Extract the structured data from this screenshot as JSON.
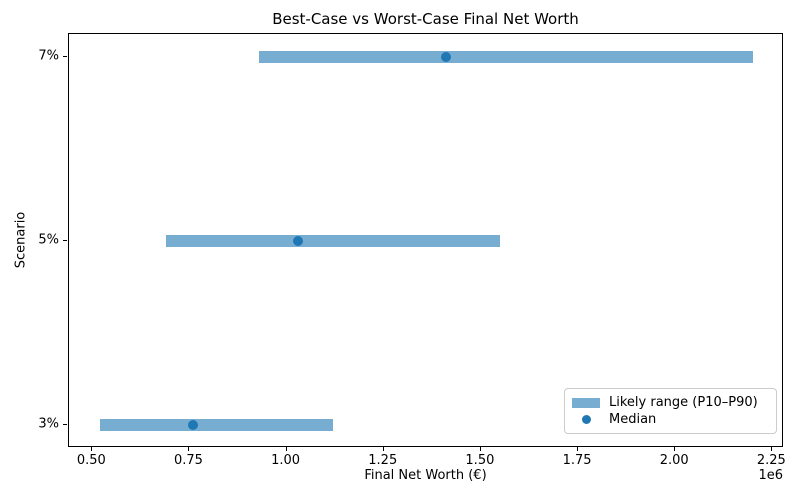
{
  "figure": {
    "title": "Best-Case vs Worst-Case Final Net Worth",
    "xlabel": "Final Net Worth (€)",
    "ylabel": "Scenario",
    "x_offset_text": "1e6"
  },
  "colors": {
    "range_bar": "#78ADD2",
    "median_dot": "#1F77B4",
    "spine": "#000000",
    "legend_border": "#CCCCCC"
  },
  "legend": {
    "position": "lower right",
    "entries": [
      {
        "label": "Likely range (P10–P90)",
        "marker": "patch"
      },
      {
        "label": "Median",
        "marker": "dot"
      }
    ]
  },
  "chart_data": {
    "type": "bar",
    "variant": "horizontal-range-bar",
    "title": "Best-Case vs Worst-Case Final Net Worth",
    "xlabel": "Final Net Worth (€)",
    "ylabel": "Scenario",
    "x_unit_multiplier": "1e6",
    "grid": false,
    "legend_position": "lower right",
    "rows_top_to_bottom": [
      {
        "category": "7%",
        "p10": 930000,
        "median": 1410000,
        "p90": 2200000
      },
      {
        "category": "5%",
        "p10": 690000,
        "median": 1030000,
        "p90": 1550000
      },
      {
        "category": "3%",
        "p10": 520000,
        "median": 760000,
        "p90": 1120000
      }
    ],
    "series": [
      {
        "name": "Likely range (P10–P90)",
        "type": "range",
        "low_key": "p10",
        "high_key": "p90"
      },
      {
        "name": "Median",
        "type": "point",
        "value_key": "median"
      }
    ],
    "xlim": [
      440000,
      2280000
    ],
    "x_ticks": [
      500000,
      750000,
      1000000,
      1250000,
      1500000,
      1750000,
      2000000,
      2250000
    ],
    "x_tick_labels": [
      "0.50",
      "0.75",
      "1.00",
      "1.25",
      "1.50",
      "1.75",
      "2.00",
      "2.25"
    ]
  }
}
